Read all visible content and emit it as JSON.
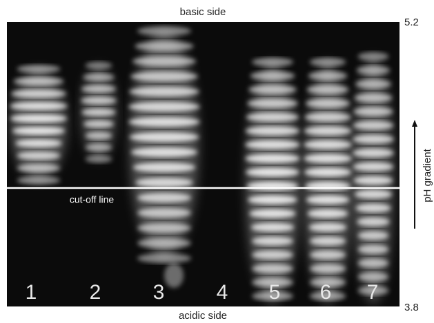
{
  "header": {
    "top_label": "basic side",
    "bottom_label": "acidic side"
  },
  "scale": {
    "top": "5.2",
    "bottom": "3.8"
  },
  "axis_label": "pH gradient",
  "annotation": "cut-off line",
  "lanes": [
    "1",
    "2",
    "3",
    "4",
    "5",
    "6",
    "7"
  ]
}
